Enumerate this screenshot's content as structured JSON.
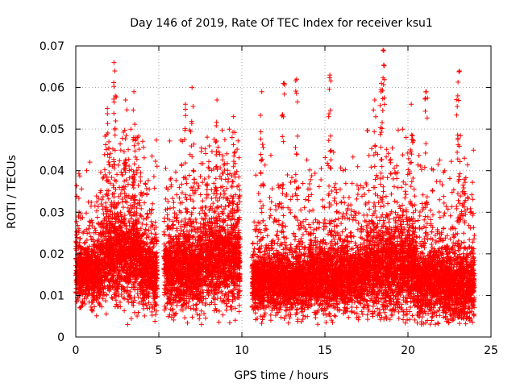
{
  "chart_data": {
    "type": "scatter",
    "title": "Day 146 of 2019, Rate Of TEC Index for receiver ksu1",
    "xlabel": "GPS time / hours",
    "ylabel": "ROTI / TECUs",
    "xlim": [
      0,
      25
    ],
    "ylim": [
      0,
      0.07
    ],
    "xticks": [
      0,
      5,
      10,
      15,
      20,
      25
    ],
    "xtick_labels": [
      "0",
      "5",
      "10",
      "15",
      "20",
      "25"
    ],
    "yticks": [
      0,
      0.01,
      0.02,
      0.03,
      0.04,
      0.05,
      0.06,
      0.07
    ],
    "ytick_labels": [
      "0",
      "0.01",
      "0.02",
      "0.03",
      "0.04",
      "0.05",
      "0.06",
      "0.07"
    ],
    "grid": true,
    "marker": "+",
    "color": "#ff0000",
    "series": [
      {
        "name": "ROTI",
        "approximate": true,
        "x_range": [
          0,
          24
        ],
        "gaps": [
          [
            4.9,
            5.3
          ],
          [
            9.9,
            10.6
          ]
        ],
        "segments": [
          {
            "from": 0.0,
            "to": 1.5,
            "mean": 0.015,
            "spread": 0.006
          },
          {
            "from": 1.5,
            "to": 4.0,
            "mean": 0.019,
            "spread": 0.009
          },
          {
            "from": 4.0,
            "to": 4.9,
            "mean": 0.015,
            "spread": 0.007
          },
          {
            "from": 5.3,
            "to": 7.5,
            "mean": 0.016,
            "spread": 0.008
          },
          {
            "from": 7.5,
            "to": 9.9,
            "mean": 0.018,
            "spread": 0.009
          },
          {
            "from": 10.6,
            "to": 14.0,
            "mean": 0.013,
            "spread": 0.006
          },
          {
            "from": 14.0,
            "to": 17.5,
            "mean": 0.014,
            "spread": 0.007
          },
          {
            "from": 17.5,
            "to": 20.5,
            "mean": 0.016,
            "spread": 0.009
          },
          {
            "from": 20.5,
            "to": 22.5,
            "mean": 0.013,
            "spread": 0.007
          },
          {
            "from": 22.5,
            "to": 24.0,
            "mean": 0.012,
            "spread": 0.007
          }
        ],
        "peaks": [
          {
            "x": 2.3,
            "y": 0.066
          },
          {
            "x": 2.35,
            "y": 0.064
          },
          {
            "x": 1.9,
            "y": 0.055
          },
          {
            "x": 3.0,
            "y": 0.057
          },
          {
            "x": 3.5,
            "y": 0.059
          },
          {
            "x": 7.0,
            "y": 0.06
          },
          {
            "x": 6.6,
            "y": 0.056
          },
          {
            "x": 8.5,
            "y": 0.057
          },
          {
            "x": 9.5,
            "y": 0.053
          },
          {
            "x": 11.2,
            "y": 0.059
          },
          {
            "x": 12.5,
            "y": 0.061
          },
          {
            "x": 13.3,
            "y": 0.062
          },
          {
            "x": 15.3,
            "y": 0.063
          },
          {
            "x": 18.5,
            "y": 0.069
          },
          {
            "x": 18.4,
            "y": 0.061
          },
          {
            "x": 18.0,
            "y": 0.057
          },
          {
            "x": 20.2,
            "y": 0.056
          },
          {
            "x": 21.1,
            "y": 0.059
          },
          {
            "x": 23.1,
            "y": 0.064
          },
          {
            "x": 23.0,
            "y": 0.058
          },
          {
            "x": 23.4,
            "y": 0.043
          }
        ]
      }
    ]
  }
}
